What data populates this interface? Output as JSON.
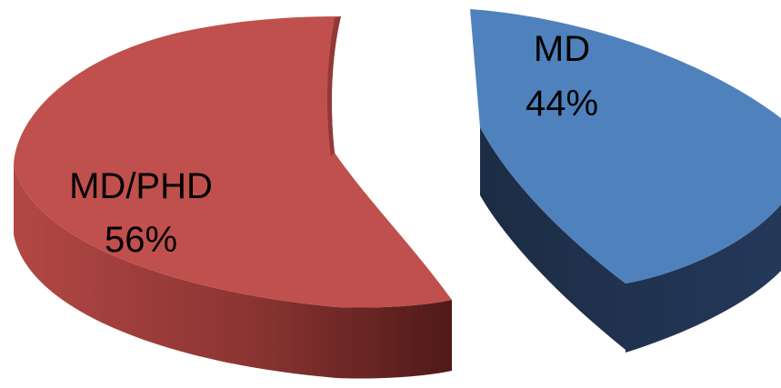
{
  "chart_data": {
    "type": "pie",
    "style": "3d-exploded",
    "title": "",
    "slices": [
      {
        "label": "MD",
        "value": 44,
        "value_label": "44%",
        "color": "#4f81bd",
        "side_color": "#1f3049"
      },
      {
        "label": "MD/PHD",
        "value": 56,
        "value_label": "56%",
        "color": "#c0504d",
        "side_color": "#6e2523"
      }
    ],
    "legend": "none"
  }
}
